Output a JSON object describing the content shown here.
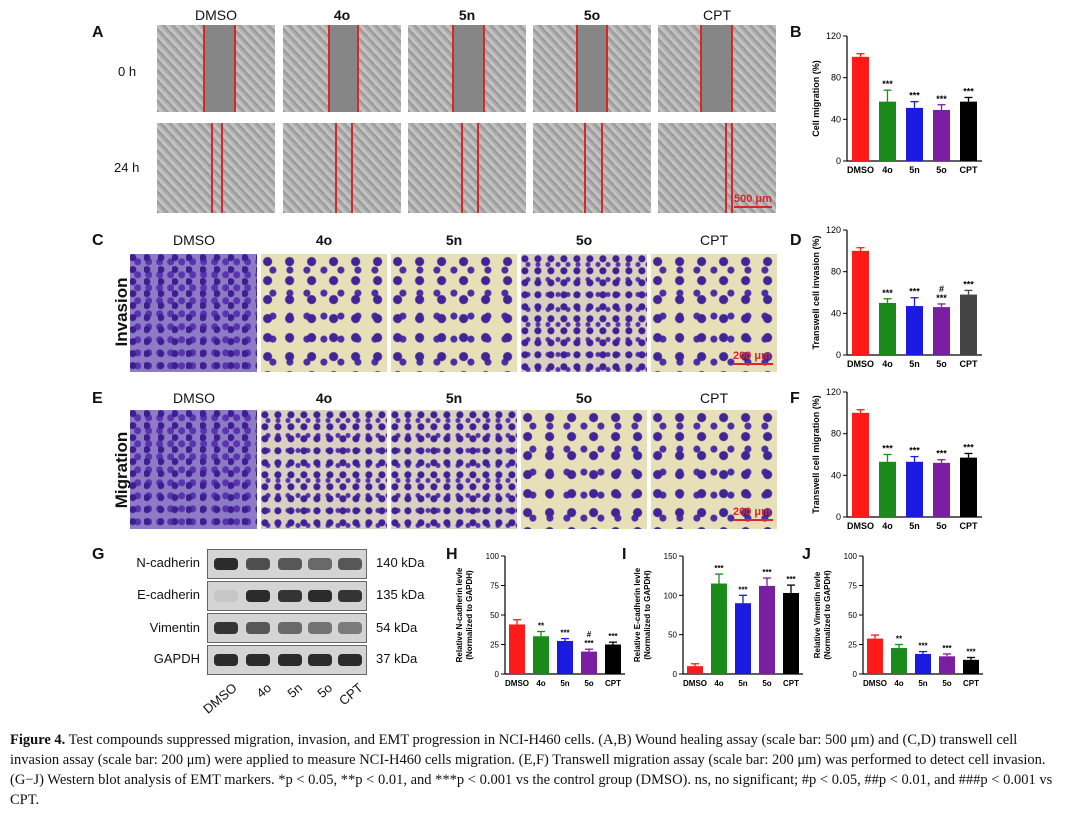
{
  "panels": {
    "A": "A",
    "B": "B",
    "C": "C",
    "D": "D",
    "E": "E",
    "F": "F",
    "G": "G",
    "H": "H",
    "I": "I",
    "J": "J"
  },
  "columns": [
    "DMSO",
    "4o",
    "5n",
    "5o",
    "CPT"
  ],
  "rows_A": [
    "0 h",
    "24 h"
  ],
  "row_C": "Invasion",
  "row_E": "Migration",
  "scale_A": "500 μm",
  "scale_C": "200 μm",
  "scale_E": "200 μm",
  "blot": {
    "proteins": [
      "N-cadherin",
      "E-cadherin",
      "Vimentin",
      "GAPDH"
    ],
    "kda": [
      "140 kDa",
      "135 kDa",
      "54 kDa",
      "37 kDa"
    ],
    "lanes": [
      "DMSO",
      "4o",
      "5n",
      "5o",
      "CPT"
    ]
  },
  "colors": {
    "DMSO": "#ff1a1a",
    "4o": "#1a8a1a",
    "5n": "#1a1ae0",
    "5o": "#7b1fa2",
    "CPT": "#000000",
    "CPT_D": "#444444"
  },
  "chart_data": [
    {
      "panel": "B",
      "type": "bar",
      "categories": [
        "DMSO",
        "4o",
        "5n",
        "5o",
        "CPT"
      ],
      "values": [
        100,
        57,
        51,
        49,
        57
      ],
      "errors": [
        3,
        11,
        6,
        5,
        4
      ],
      "annotations": [
        "",
        "***",
        "***",
        "***",
        "***"
      ],
      "ylabel": "Cell migration (%)",
      "ylim": [
        0,
        120
      ],
      "yticks": [
        0,
        40,
        80,
        120
      ]
    },
    {
      "panel": "D",
      "type": "bar",
      "categories": [
        "DMSO",
        "4o",
        "5n",
        "5o",
        "CPT"
      ],
      "values": [
        100,
        50,
        47,
        46,
        58
      ],
      "errors": [
        3,
        4,
        8,
        3,
        4
      ],
      "annotations": [
        "",
        "***",
        "***",
        "#\n***",
        "***"
      ],
      "ylabel": "Transwell cell invasion (%)",
      "ylim": [
        0,
        120
      ],
      "yticks": [
        0,
        40,
        80,
        120
      ]
    },
    {
      "panel": "F",
      "type": "bar",
      "categories": [
        "DMSO",
        "4o",
        "5n",
        "5o",
        "CPT"
      ],
      "values": [
        100,
        53,
        53,
        52,
        57
      ],
      "errors": [
        3,
        7,
        5,
        3,
        4
      ],
      "annotations": [
        "",
        "***",
        "***",
        "***",
        "***"
      ],
      "ylabel": "Transwell cell migration (%)",
      "ylim": [
        0,
        120
      ],
      "yticks": [
        0,
        40,
        80,
        120
      ]
    },
    {
      "panel": "H",
      "type": "bar",
      "categories": [
        "DMSO",
        "4o",
        "5n",
        "5o",
        "CPT"
      ],
      "values": [
        42,
        32,
        28,
        19,
        25
      ],
      "errors": [
        4,
        4,
        2,
        2,
        2
      ],
      "annotations": [
        "",
        "**",
        "***",
        "#\n***",
        "***"
      ],
      "ylabel": [
        "Relative N-cadherin levle",
        "(Normalized to GAPDH)"
      ],
      "ylim": [
        0,
        100
      ],
      "yticks": [
        0,
        25,
        50,
        75,
        100
      ]
    },
    {
      "panel": "I",
      "type": "bar",
      "categories": [
        "DMSO",
        "4o",
        "5n",
        "5o",
        "CPT"
      ],
      "values": [
        10,
        115,
        90,
        112,
        103
      ],
      "errors": [
        3,
        12,
        10,
        10,
        10
      ],
      "annotations": [
        "",
        "***",
        "***",
        "***",
        "***"
      ],
      "ylabel": [
        "Relative E-cadherin levle",
        "(Normalized to GAPDH)"
      ],
      "ylim": [
        0,
        150
      ],
      "yticks": [
        0,
        50,
        100,
        150
      ]
    },
    {
      "panel": "J",
      "type": "bar",
      "categories": [
        "DMSO",
        "4o",
        "5n",
        "5o",
        "CPT"
      ],
      "values": [
        30,
        22,
        17,
        15,
        12
      ],
      "errors": [
        3,
        3,
        2,
        2,
        2
      ],
      "annotations": [
        "",
        "**",
        "***",
        "***",
        "***"
      ],
      "ylabel": [
        "Relative Vimentin levle",
        "(Normalized to GAPDH)"
      ],
      "ylim": [
        0,
        100
      ],
      "yticks": [
        0,
        25,
        50,
        75,
        100
      ]
    }
  ],
  "caption": {
    "lead": "Figure 4.",
    "text": " Test compounds suppressed migration, invasion, and EMT progression in NCI-H460 cells. (A,B) Wound healing assay (scale bar: 500 μm) and (C,D) transwell cell invasion assay (scale bar: 200 μm) were applied to measure NCI-H460 cells migration. (E,F) Transwell migration assay (scale bar: 200 μm) was performed to detect cell invasion. (G−J) Western blot analysis of EMT markers. *p < 0.05, **p < 0.01, and ***p < 0.001 vs the control group (DMSO). ns, no significant; #p < 0.05, ##p < 0.01, and ###p < 0.001 vs CPT."
  }
}
